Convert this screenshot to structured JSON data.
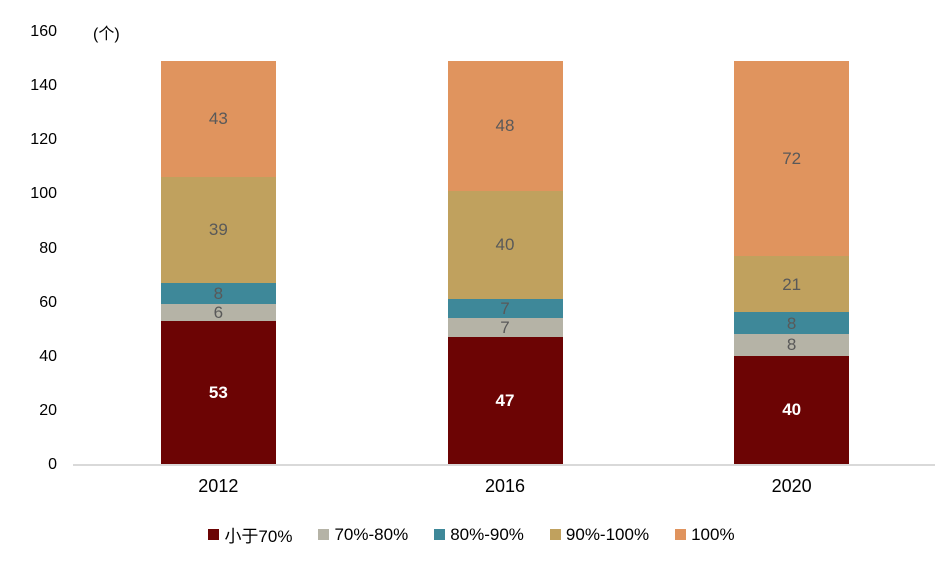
{
  "chart_data": {
    "type": "bar",
    "stacked": true,
    "title": "",
    "unit_label": "(个)",
    "xlabel": "",
    "ylabel": "",
    "categories": [
      "2012",
      "2016",
      "2020"
    ],
    "series": [
      {
        "name": "小于70%",
        "color": "#6C0404",
        "label_color": "#FFFFFF",
        "values": [
          53,
          47,
          40
        ]
      },
      {
        "name": "70%-80%",
        "color": "#B5B3A6",
        "label_color": "#595959",
        "values": [
          6,
          7,
          8
        ]
      },
      {
        "name": "80%-90%",
        "color": "#3E8899",
        "label_color": "#595959",
        "values": [
          8,
          7,
          8
        ]
      },
      {
        "name": "90%-100%",
        "color": "#C0A15E",
        "label_color": "#595959",
        "values": [
          39,
          40,
          21
        ]
      },
      {
        "name": "100%",
        "color": "#E0945E",
        "label_color": "#595959",
        "values": [
          43,
          48,
          72
        ]
      }
    ],
    "ylim": [
      0,
      160
    ],
    "yticks": [
      0,
      20,
      40,
      60,
      80,
      100,
      120,
      140,
      160
    ],
    "grid": false,
    "legend_position": "bottom",
    "axis_line_color": "#D9D9D9"
  }
}
